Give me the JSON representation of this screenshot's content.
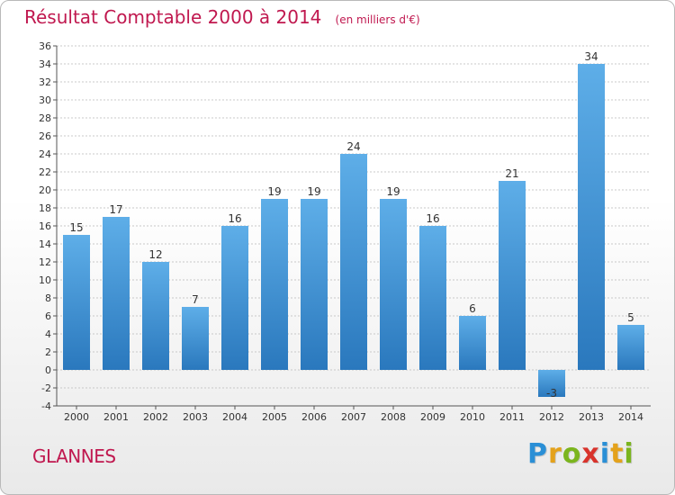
{
  "header": {
    "title": "Résultat Comptable 2000 à 2014",
    "subtitle": "(en milliers d'€)"
  },
  "footer": {
    "commune": "GLANNES",
    "logo_text": "Proxiti",
    "logo_letters": [
      {
        "ch": "P",
        "color": "#2a8fd6"
      },
      {
        "ch": "r",
        "color": "#e4a21b"
      },
      {
        "ch": "o",
        "color": "#7bb51e"
      },
      {
        "ch": "x",
        "color": "#d8332c"
      },
      {
        "ch": "i",
        "color": "#2a8fd6"
      },
      {
        "ch": "t",
        "color": "#e4a21b"
      },
      {
        "ch": "i",
        "color": "#7bb51e"
      }
    ]
  },
  "colors": {
    "bar_top": "#5eaee8",
    "bar_bottom": "#2a78bd",
    "grid": "#c8c8c8",
    "title": "#c0184f"
  },
  "chart_data": {
    "type": "bar",
    "categories": [
      "2000",
      "2001",
      "2002",
      "2003",
      "2004",
      "2005",
      "2006",
      "2007",
      "2008",
      "2009",
      "2010",
      "2011",
      "2012",
      "2013",
      "2014"
    ],
    "values": [
      15,
      17,
      12,
      7,
      16,
      19,
      19,
      24,
      19,
      16,
      6,
      21,
      -3,
      34,
      5
    ],
    "title": "Résultat Comptable 2000 à 2014",
    "subtitle": "(en milliers d'€)",
    "ylim": [
      -4,
      36
    ],
    "yticks": [
      -4,
      -2,
      0,
      2,
      4,
      6,
      8,
      10,
      12,
      14,
      16,
      18,
      20,
      22,
      24,
      26,
      28,
      30,
      32,
      34,
      36
    ],
    "grid": true,
    "legend": "none"
  }
}
